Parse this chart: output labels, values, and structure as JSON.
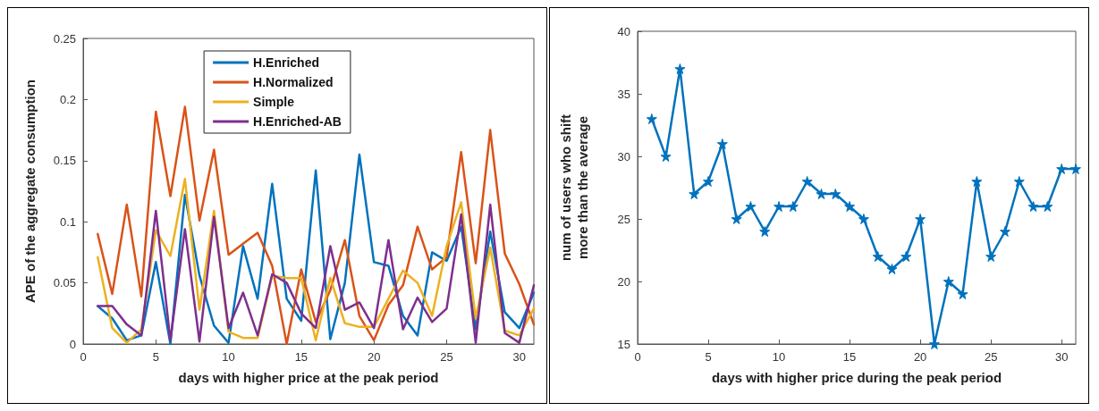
{
  "chart_data": [
    {
      "type": "line",
      "xlabel": "days with higher price at the peak period",
      "ylabel": "APE of the aggregate consumption",
      "x": [
        1,
        2,
        3,
        4,
        5,
        6,
        7,
        8,
        9,
        10,
        11,
        12,
        13,
        14,
        15,
        16,
        17,
        18,
        19,
        20,
        21,
        22,
        23,
        24,
        25,
        26,
        27,
        28,
        29,
        30,
        31
      ],
      "series": [
        {
          "name": "H.Enriched",
          "color": "#0072bd",
          "values": [
            0.031,
            0.021,
            0.003,
            0.007,
            0.067,
            0,
            0.122,
            0.056,
            0.015,
            0.001,
            0.08,
            0.037,
            0.131,
            0.037,
            0.019,
            0.142,
            0.004,
            0.05,
            0.155,
            0.067,
            0.064,
            0.023,
            0.007,
            0.075,
            0.068,
            0.096,
            0.012,
            0.092,
            0.026,
            0.013,
            0.042
          ]
        },
        {
          "name": "H.Normalized",
          "color": "#d95319",
          "values": [
            0.09,
            0.041,
            0.114,
            0.039,
            0.19,
            0.121,
            0.194,
            0.101,
            0.159,
            0.073,
            0.082,
            0.091,
            0.064,
            0,
            0.061,
            0.018,
            0.044,
            0.085,
            0.023,
            0.003,
            0.032,
            0.048,
            0.096,
            0.061,
            0.071,
            0.157,
            0.066,
            0.175,
            0.074,
            0.049,
            0.016
          ]
        },
        {
          "name": "Simple",
          "color": "#edb120",
          "values": [
            0.071,
            0.013,
            0.001,
            0.012,
            0.093,
            0.072,
            0.135,
            0.028,
            0.109,
            0.01,
            0.005,
            0.005,
            0.056,
            0.054,
            0.054,
            0.003,
            0.054,
            0.017,
            0.014,
            0.014,
            0.037,
            0.06,
            0.05,
            0.023,
            0.08,
            0.116,
            0.021,
            0.079,
            0.011,
            0.007,
            0.029
          ]
        },
        {
          "name": "H.Enriched-AB",
          "color": "#7e2f8e",
          "values": [
            0.031,
            0.031,
            0.016,
            0.007,
            0.109,
            0.003,
            0.094,
            0.002,
            0.104,
            0.013,
            0.042,
            0.007,
            0.057,
            0.05,
            0.025,
            0.013,
            0.08,
            0.028,
            0.034,
            0.013,
            0.085,
            0.012,
            0.038,
            0.018,
            0.029,
            0.106,
            0.001,
            0.114,
            0.009,
            0.001,
            0.048
          ]
        }
      ],
      "xlim": [
        0,
        31
      ],
      "xticks": [
        0,
        5,
        10,
        15,
        20,
        25,
        30
      ],
      "ylim": [
        0,
        0.25
      ],
      "yticks": [
        0,
        0.05,
        0.1,
        0.15,
        0.2,
        0.25
      ],
      "grid": false,
      "legend": "top",
      "marker": "none",
      "line_style": "solid"
    },
    {
      "type": "line",
      "xlabel": "days with higher price during the peak period",
      "ylabel": "num of users who shift\nmore than the average",
      "x": [
        1,
        2,
        3,
        4,
        5,
        6,
        7,
        8,
        9,
        10,
        11,
        12,
        13,
        14,
        15,
        16,
        17,
        18,
        19,
        20,
        21,
        22,
        23,
        24,
        25,
        26,
        27,
        28,
        29,
        30,
        31
      ],
      "series": [
        {
          "color": "#0072bd",
          "values": [
            33,
            30,
            37,
            27,
            28,
            31,
            25,
            26,
            24,
            26,
            26,
            28,
            27,
            27,
            26,
            25,
            22,
            21,
            22,
            25,
            15,
            20,
            19,
            28,
            22,
            24,
            28,
            26,
            26,
            29,
            29
          ]
        }
      ],
      "xlim": [
        0,
        31
      ],
      "xticks": [
        0,
        5,
        10,
        15,
        20,
        25,
        30
      ],
      "ylim": [
        15,
        40
      ],
      "yticks": [
        15,
        20,
        25,
        30,
        35,
        40
      ],
      "grid": false,
      "legend": false,
      "marker": "star",
      "line_style": "solid"
    }
  ]
}
